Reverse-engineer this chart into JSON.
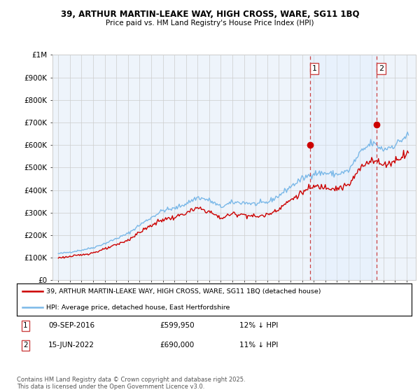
{
  "title_line1": "39, ARTHUR MARTIN-LEAKE WAY, HIGH CROSS, WARE, SG11 1BQ",
  "title_line2": "Price paid vs. HM Land Registry's House Price Index (HPI)",
  "legend_label1": "39, ARTHUR MARTIN-LEAKE WAY, HIGH CROSS, WARE, SG11 1BQ (detached house)",
  "legend_label2": "HPI: Average price, detached house, East Hertfordshire",
  "annotation1": {
    "label": "1",
    "date": "09-SEP-2016",
    "price": "£599,950",
    "note": "12% ↓ HPI"
  },
  "annotation2": {
    "label": "2",
    "date": "15-JUN-2022",
    "price": "£690,000",
    "note": "11% ↓ HPI"
  },
  "vline1_x": 2016.69,
  "vline2_x": 2022.45,
  "sale1_y": 599950,
  "sale2_y": 690000,
  "footer": "Contains HM Land Registry data © Crown copyright and database right 2025.\nThis data is licensed under the Open Government Licence v3.0.",
  "hpi_color": "#7ab8e8",
  "price_color": "#cc0000",
  "shade_color": "#ddeeff",
  "background_color": "#eef4fb",
  "grid_color": "#cccccc",
  "ylim": [
    0,
    1000000
  ],
  "xlim": [
    1994.5,
    2025.8
  ],
  "yticks": [
    0,
    100000,
    200000,
    300000,
    400000,
    500000,
    600000,
    700000,
    800000,
    900000,
    1000000
  ],
  "ylabels": [
    "£0",
    "£100K",
    "£200K",
    "£300K",
    "£400K",
    "£500K",
    "£600K",
    "£700K",
    "£800K",
    "£900K",
    "£1M"
  ]
}
